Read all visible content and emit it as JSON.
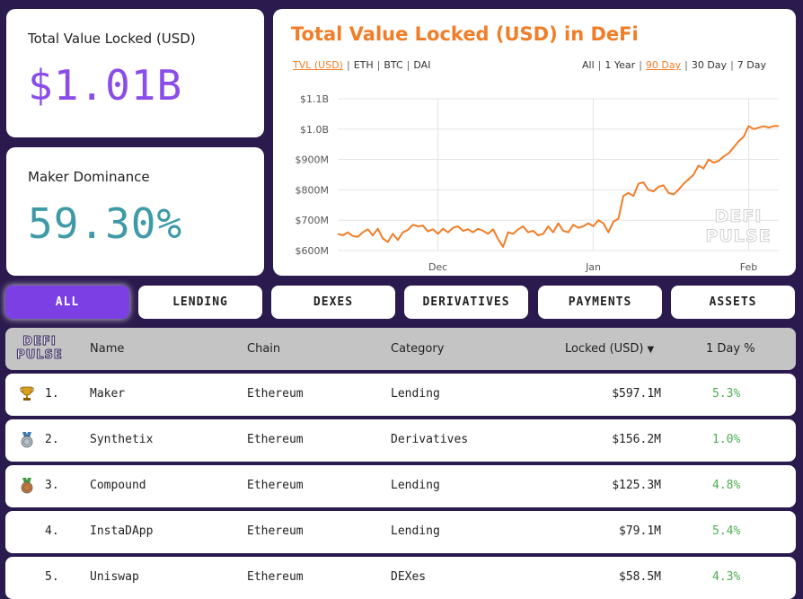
{
  "tvl_card": {
    "label": "Total Value Locked (USD)",
    "value": "$1.01B"
  },
  "dominance_card": {
    "label": "Maker Dominance",
    "value": "59.30%"
  },
  "chart": {
    "title": "Total Value Locked (USD) in DeFi",
    "metric_tabs": [
      "TVL (USD)",
      "ETH",
      "BTC",
      "DAI"
    ],
    "active_metric": "TVL (USD)",
    "range_tabs": [
      "All",
      "1 Year",
      "90 Day",
      "30 Day",
      "7 Day"
    ],
    "active_range": "90 Day",
    "watermark": [
      "DEFI",
      "PULSE"
    ],
    "accent_color": "#f07d28"
  },
  "chart_data": {
    "type": "line",
    "title": "Total Value Locked (USD) in DeFi",
    "xlabel": "",
    "ylabel": "",
    "y_tick_labels": [
      "$600M",
      "$700M",
      "$800M",
      "$900M",
      "$1.0B",
      "$1.1B"
    ],
    "y_ticks": [
      600,
      700,
      800,
      900,
      1000,
      1100
    ],
    "ylim": [
      600,
      1100
    ],
    "x_tick_labels": [
      "Dec",
      "Jan",
      "Feb"
    ],
    "x_tick_positions": [
      20,
      51,
      82
    ],
    "xlim": [
      0,
      88
    ],
    "grid": true,
    "series": [
      {
        "color": "#f07d28",
        "x": [
          0,
          1,
          2,
          3,
          4,
          5,
          6,
          7,
          8,
          9,
          10,
          11,
          12,
          13,
          14,
          15,
          16,
          17,
          18,
          19,
          20,
          21,
          22,
          23,
          24,
          25,
          26,
          27,
          28,
          29,
          30,
          31,
          32,
          33,
          34,
          35,
          36,
          37,
          38,
          39,
          40,
          41,
          42,
          43,
          44,
          45,
          46,
          47,
          48,
          49,
          50,
          51,
          52,
          53,
          54,
          55,
          56,
          57,
          58,
          59,
          60,
          61,
          62,
          63,
          64,
          65,
          66,
          67,
          68,
          69,
          70,
          71,
          72,
          73,
          74,
          75,
          76,
          77,
          78,
          79,
          80,
          81,
          82,
          83,
          84,
          85,
          86,
          87,
          88
        ],
        "values": [
          655,
          650,
          660,
          648,
          645,
          660,
          670,
          650,
          672,
          640,
          628,
          655,
          635,
          660,
          668,
          685,
          680,
          682,
          663,
          670,
          655,
          672,
          660,
          675,
          680,
          665,
          670,
          660,
          672,
          665,
          655,
          670,
          638,
          612,
          660,
          655,
          670,
          680,
          660,
          665,
          650,
          655,
          680,
          660,
          690,
          665,
          660,
          685,
          675,
          680,
          690,
          680,
          700,
          690,
          660,
          695,
          705,
          780,
          790,
          780,
          820,
          825,
          800,
          795,
          810,
          815,
          790,
          785,
          800,
          820,
          835,
          850,
          880,
          870,
          900,
          890,
          895,
          910,
          920,
          940,
          960,
          975,
          1010,
          1000,
          1005,
          1010,
          1005,
          1010,
          1010
        ]
      }
    ]
  },
  "filters": [
    "ALL",
    "LENDING",
    "DEXES",
    "DERIVATIVES",
    "PAYMENTS",
    "ASSETS"
  ],
  "active_filter": "ALL",
  "table": {
    "logo": [
      "DEFI",
      "PULSE"
    ],
    "headers": {
      "name": "Name",
      "chain": "Chain",
      "category": "Category",
      "locked": "Locked (USD)",
      "sort_arrow": "▼",
      "change": "1 Day %"
    },
    "rows": [
      {
        "rank": "1.",
        "name": "Maker",
        "chain": "Ethereum",
        "category": "Lending",
        "locked": "$597.1M",
        "change": "5.3%",
        "medal": "trophy"
      },
      {
        "rank": "2.",
        "name": "Synthetix",
        "chain": "Ethereum",
        "category": "Derivatives",
        "locked": "$156.2M",
        "change": "1.0%",
        "medal": "silver"
      },
      {
        "rank": "3.",
        "name": "Compound",
        "chain": "Ethereum",
        "category": "Lending",
        "locked": "$125.3M",
        "change": "4.8%",
        "medal": "bronze"
      },
      {
        "rank": "4.",
        "name": "InstaDApp",
        "chain": "Ethereum",
        "category": "Lending",
        "locked": "$79.1M",
        "change": "5.4%",
        "medal": ""
      },
      {
        "rank": "5.",
        "name": "Uniswap",
        "chain": "Ethereum",
        "category": "DEXes",
        "locked": "$58.5M",
        "change": "4.3%",
        "medal": ""
      }
    ]
  }
}
